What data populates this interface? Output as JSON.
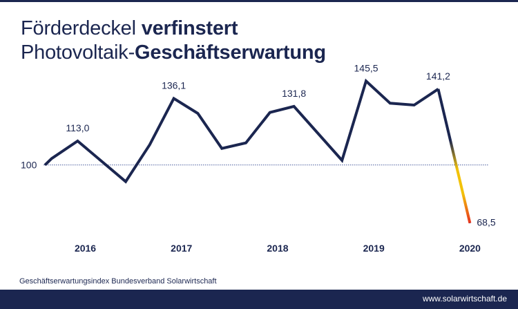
{
  "title": {
    "line1_regular": "Förderdeckel ",
    "line1_bold": "verfinstert",
    "line2_regular": "Photovoltaik-",
    "line2_bold": "Geschäftserwartung"
  },
  "source": "Geschäftserwartungsindex Bundesverband Solarwirtschaft",
  "footer_url": "www.solarwirtschaft.de",
  "colors": {
    "navy": "#1b2650",
    "accent_yellow": "#f2c20a",
    "accent_red": "#e8321e",
    "reference_line": "#4a5d9e"
  },
  "chart_data": {
    "type": "line",
    "title": "Geschäftserwartungsindex",
    "series": [
      {
        "name": "Geschäftserwartungsindex",
        "points": [
          {
            "x": 2015.58,
            "y": 100
          },
          {
            "x": 2015.65,
            "y": 103.5
          },
          {
            "x": 2015.92,
            "y": 113.0,
            "label": "113,0"
          },
          {
            "x": 2016.42,
            "y": 91
          },
          {
            "x": 2016.67,
            "y": 111
          },
          {
            "x": 2016.92,
            "y": 136.1,
            "label": "136,1"
          },
          {
            "x": 2017.17,
            "y": 128
          },
          {
            "x": 2017.42,
            "y": 109
          },
          {
            "x": 2017.67,
            "y": 112
          },
          {
            "x": 2017.92,
            "y": 128.5
          },
          {
            "x": 2018.17,
            "y": 131.8,
            "label": "131,8"
          },
          {
            "x": 2018.67,
            "y": 102.5
          },
          {
            "x": 2018.92,
            "y": 145.5,
            "label": "145,5"
          },
          {
            "x": 2019.17,
            "y": 133.5
          },
          {
            "x": 2019.42,
            "y": 132.5
          },
          {
            "x": 2019.67,
            "y": 141.2,
            "label": "141,2"
          },
          {
            "x": 2020.0,
            "y": 68.5,
            "label": "68,5"
          }
        ]
      }
    ],
    "reference_line": {
      "y": 100,
      "label": "100"
    },
    "categories": [
      "2016",
      "2017",
      "2018",
      "2019",
      "2020"
    ],
    "xlim": [
      2015.4,
      2020.5
    ],
    "ylim": [
      62,
      152
    ],
    "grid": false
  }
}
